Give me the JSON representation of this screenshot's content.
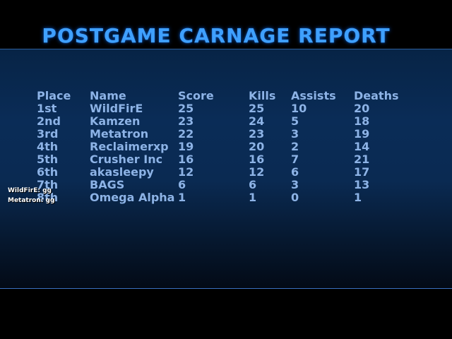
{
  "title": "POSTGAME CARNAGE REPORT",
  "headers": {
    "place": "Place",
    "name": "Name",
    "score": "Score",
    "kills": "Kills",
    "assists": "Assists",
    "deaths": "Deaths"
  },
  "rows": [
    {
      "place": "1st",
      "name": "WildFirE",
      "score": "25",
      "kills": "25",
      "assists": "10",
      "deaths": "20"
    },
    {
      "place": "2nd",
      "name": "Kamzen",
      "score": "23",
      "kills": "24",
      "assists": "5",
      "deaths": "18"
    },
    {
      "place": "3rd",
      "name": "Metatron",
      "score": "22",
      "kills": "23",
      "assists": "3",
      "deaths": "19"
    },
    {
      "place": "4th",
      "name": "Reclaimerxp",
      "score": "19",
      "kills": "20",
      "assists": "2",
      "deaths": "14"
    },
    {
      "place": "5th",
      "name": "Crusher Inc",
      "score": "16",
      "kills": "16",
      "assists": "7",
      "deaths": "21"
    },
    {
      "place": "6th",
      "name": "akasleepy",
      "score": "12",
      "kills": "12",
      "assists": "6",
      "deaths": "17"
    },
    {
      "place": "7th",
      "name": "BAGS",
      "score": "6",
      "kills": "6",
      "assists": "3",
      "deaths": "13"
    },
    {
      "place": "8th",
      "name": "Omega Alpha",
      "score": "1",
      "kills": "1",
      "assists": "0",
      "deaths": "1"
    }
  ],
  "chat": [
    "WildFirE: gg",
    "Metatron: gg"
  ],
  "colors": {
    "title": "#3fa0ff",
    "text": "#8db3e6",
    "winner_place": "#f2e60a",
    "highlight": "#ffffff",
    "panel": "#0a2c57"
  }
}
